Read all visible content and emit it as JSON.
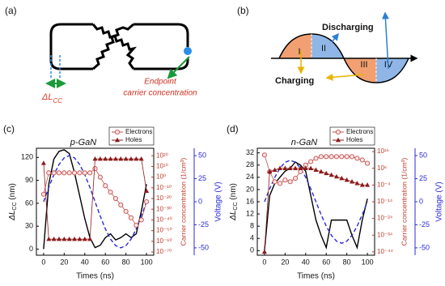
{
  "panel_a": {
    "label": "(a)",
    "delta_label": "ΔL",
    "delta_sub": "CC",
    "endpoint_line1": "Endpoint",
    "endpoint_line2": "carrier concentration"
  },
  "panel_b": {
    "label": "(b)",
    "regions": [
      "I",
      "II",
      "III",
      "IV"
    ],
    "discharging": "Discharging",
    "charging": "Charging"
  },
  "chart_data": [
    {
      "type": "line",
      "label": "(c)",
      "title": "p-GaN",
      "x": [
        0,
        5,
        10,
        15,
        20,
        25,
        30,
        35,
        40,
        45,
        50,
        55,
        60,
        65,
        70,
        75,
        80,
        85,
        90,
        95,
        100
      ],
      "xlim": [
        -7,
        107
      ],
      "xticks": [
        0,
        20,
        40,
        60,
        80,
        100
      ],
      "x_label": "Times (ns)",
      "ylim": [
        -8,
        132
      ],
      "yticks": [
        0,
        30,
        60,
        90,
        120
      ],
      "y_label": "ΔL",
      "y_label_sub": "CC",
      "y_label_unit": " (nm)",
      "y2lim": [
        1e-73,
        1e+27
      ],
      "y2_log": true,
      "y2ticks": [
        {
          "value": 1e+20,
          "label": "10²⁰"
        },
        {
          "value": 10000000000.0,
          "label": "10¹⁰"
        },
        {
          "value": 1,
          "label": "10⁰"
        },
        {
          "value": 1e-10,
          "label": "10⁻¹⁰"
        },
        {
          "value": 1e-20,
          "label": "10⁻²⁰"
        },
        {
          "value": 1e-30,
          "label": "10⁻³⁰"
        },
        {
          "value": 1e-40,
          "label": "10⁻⁴⁰"
        },
        {
          "value": 1e-50,
          "label": "10⁻⁵⁰"
        },
        {
          "value": 1e-60,
          "label": "10⁻⁶⁰"
        },
        {
          "value": 1e-70,
          "label": "10⁻⁷⁰"
        }
      ],
      "y2_label": "Carrier concentration (1/cm³)",
      "y3lim": [
        -58,
        58
      ],
      "y3ticks": [
        -50,
        -25,
        0,
        25,
        50
      ],
      "y3_label": "Voltage (V)",
      "series": [
        {
          "color": "#000000",
          "style": "solid",
          "axis": "y",
          "values": [
            0,
            85,
            118,
            128,
            130,
            125,
            100,
            70,
            40,
            15,
            2,
            5,
            15,
            20,
            12,
            15,
            20,
            15,
            20,
            50,
            85
          ]
        },
        {
          "color": "#2b2bd6",
          "style": "dash",
          "axis": "y3",
          "values": [
            0,
            15.5,
            29.4,
            40.5,
            47.6,
            50,
            47.6,
            40.5,
            29.4,
            15.5,
            0,
            -15.5,
            -29.4,
            -40.5,
            -47.6,
            -50,
            -47.6,
            -40.5,
            -29.4,
            -15.5,
            0
          ]
        },
        {
          "name": "Electrons",
          "color": "#c0504d",
          "style": "circle",
          "axis": "y2",
          "values": [
            1e-16,
            10000.0,
            10000.0,
            10000.0,
            10000.0,
            10000.0,
            10000.0,
            10000.0,
            10000.0,
            10000.0,
            100000000.0,
            1,
            1e-08,
            1e-14,
            1e-20,
            1e-26,
            1e-32,
            1e-38,
            1e-45,
            1e-40,
            1e-23
          ]
        },
        {
          "name": "Holes",
          "color": "#8b1a1a",
          "style": "triangle",
          "axis": "y2",
          "values": [
            10000000000000.0,
            1e-58,
            1e-58,
            1e-58,
            1e-58,
            1e-58,
            1e-58,
            1e-58,
            1e-58,
            1e-58,
            1e+17,
            1e+17,
            1e+17,
            1e+17,
            1e+17,
            1e+17,
            1e+17,
            1e+17,
            1e+17,
            1e+17,
            1e-13
          ]
        }
      ]
    },
    {
      "type": "line",
      "label": "(d)",
      "title": "n-GaN",
      "x": [
        0,
        5,
        10,
        15,
        20,
        25,
        30,
        35,
        40,
        45,
        50,
        55,
        60,
        65,
        70,
        75,
        80,
        85,
        90,
        95,
        100
      ],
      "xlim": [
        -7,
        107
      ],
      "xticks": [
        0,
        20,
        40,
        60,
        80,
        100
      ],
      "x_label": "Times (ns)",
      "ylim": [
        -1.5,
        33.5
      ],
      "yticks": [
        0,
        4,
        8,
        12,
        16,
        20,
        24,
        28,
        32
      ],
      "y_label": "ΔL",
      "y_label_sub": "CC",
      "y_label_unit": " (nm)",
      "y2lim": [
        1e-46,
        1e+18
      ],
      "y2_log": true,
      "y2ticks": [
        {
          "value": 1e+16,
          "label": "10¹⁶"
        },
        {
          "value": 1000000.0,
          "label": "10⁶"
        },
        {
          "value": 0.0001,
          "label": "10⁻⁴"
        },
        {
          "value": 1e-14,
          "label": "10⁻¹⁴"
        },
        {
          "value": 1e-24,
          "label": "10⁻²⁴"
        },
        {
          "value": 1e-34,
          "label": "10⁻³⁴"
        },
        {
          "value": 1e-44,
          "label": "10⁻⁴⁴"
        }
      ],
      "y2_label": "Carrier concentration (1/cm³)",
      "y3lim": [
        -58,
        58
      ],
      "y3ticks": [
        -50,
        -25,
        0,
        25,
        50
      ],
      "y3_label": "Voltage (V)",
      "series": [
        {
          "color": "#000000",
          "style": "solid",
          "axis": "y",
          "values": [
            0,
            18,
            22,
            24,
            26,
            27,
            29,
            28,
            26,
            18,
            10,
            5,
            1,
            10,
            10,
            10,
            10,
            5,
            1,
            10,
            17
          ]
        },
        {
          "color": "#2b2bd6",
          "style": "dash",
          "axis": "y3",
          "values": [
            0,
            14,
            26.5,
            36.4,
            42.8,
            45,
            42.8,
            36.4,
            26.5,
            14,
            0,
            -14,
            -26.5,
            -36.4,
            -42.8,
            -45,
            -42.8,
            -36.4,
            -26.5,
            -14,
            0
          ]
        },
        {
          "name": "Electrons",
          "color": "#c0504d",
          "style": "circle",
          "axis": "y2",
          "values": [
            100000000000000.0,
            10000.0,
            0.01,
            0.001,
            0.1,
            0.01,
            1,
            10000.0,
            100000000.0,
            10000000000.0,
            1000000000000.0,
            10000000000000.0,
            10000000000000.0,
            10000000000000.0,
            10000000000000.0,
            10000000000000.0,
            10000000000000.0,
            10000000000000.0,
            1000000000000.0,
            100000000000.0,
            1000000000.0
          ]
        },
        {
          "name": "Holes",
          "color": "#8b1a1a",
          "style": "triangle",
          "axis": "y2",
          "values": [
            1e-44,
            10000.0,
            100000.0,
            1000000.0,
            1000000.0,
            1000000.0,
            1000000.0,
            1000000.0,
            1000000.0,
            1000000.0,
            100000.0,
            10000.0,
            1000.0,
            100.0,
            10.0,
            1,
            0.1,
            0.01,
            0.001,
            0.0001,
            0.0001
          ]
        }
      ]
    }
  ]
}
